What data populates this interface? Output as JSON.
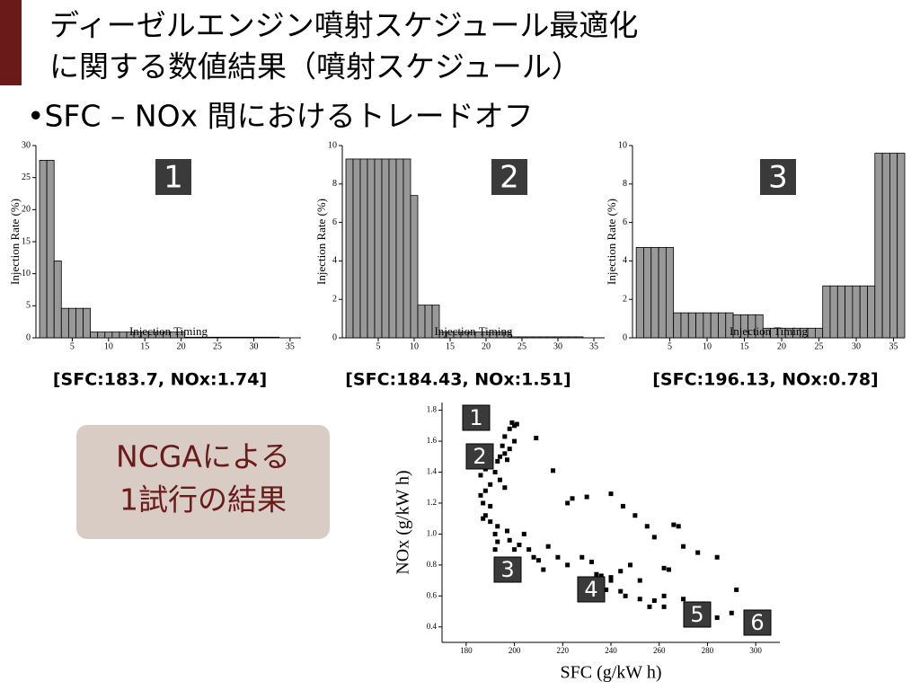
{
  "slide": {
    "title_lines": [
      "ディーゼルエンジン噴射スケジュール最適化",
      "に関する数値結果（噴射スケジュール）"
    ],
    "bullet": "•SFC – NOx 間におけるトレードオフ",
    "box_lines": [
      "NCGAによる",
      "1試行の結果"
    ]
  },
  "chart_data": [
    {
      "type": "bar",
      "annotation": "1",
      "caption": "[SFC:183.7, NOx:1.74]",
      "xlabel": "Injection Timing",
      "ylabel": "Injection Rate (%)",
      "color": "#999999",
      "x": [
        1,
        2,
        3,
        4,
        5,
        6,
        7,
        8,
        9,
        10,
        11,
        12,
        13,
        14,
        15,
        16,
        17,
        18,
        19,
        20,
        21,
        22,
        23,
        24,
        25,
        26,
        27,
        28,
        29,
        30,
        31,
        32,
        33,
        34,
        35,
        36
      ],
      "values": [
        27.7,
        27.7,
        12,
        4.6,
        4.6,
        4.6,
        4.6,
        0.9,
        0.9,
        0.9,
        0.9,
        0.9,
        0.9,
        0.9,
        0.9,
        0.9,
        0.9,
        0.9,
        0.9,
        0.9,
        0.1,
        0.1,
        0.1,
        0.1,
        0.1,
        0.1,
        0.1,
        0.1,
        0.1,
        0.1,
        0.1,
        0.1,
        0.1,
        0,
        0,
        0
      ],
      "xlim": [
        0,
        36.5
      ],
      "ylim": [
        0,
        30
      ],
      "xticks": [
        5,
        10,
        15,
        20,
        25,
        30,
        35
      ],
      "yticks": [
        0,
        5,
        10,
        15,
        20,
        25,
        30
      ]
    },
    {
      "type": "bar",
      "annotation": "2",
      "caption": "[SFC:184.43, NOx:1.51]",
      "xlabel": "Injection Timing",
      "ylabel": "Injection Rate (%)",
      "color": "#999999",
      "x": [
        1,
        2,
        3,
        4,
        5,
        6,
        7,
        8,
        9,
        10,
        11,
        12,
        13,
        14,
        15,
        16,
        17,
        18,
        19,
        20,
        21,
        22,
        23,
        24,
        25,
        26,
        27,
        28,
        29,
        30,
        31,
        32,
        33,
        34,
        35,
        36
      ],
      "values": [
        9.3,
        9.3,
        9.3,
        9.3,
        9.3,
        9.3,
        9.3,
        9.3,
        9.3,
        7.4,
        1.7,
        1.7,
        1.7,
        0.3,
        0.3,
        0.3,
        0.3,
        0.3,
        0.3,
        0.3,
        0.3,
        0.3,
        0.3,
        0.05,
        0.05,
        0.05,
        0.05,
        0.05,
        0.05,
        0.05,
        0.05,
        0.05,
        0.05,
        0,
        0,
        0
      ],
      "xlim": [
        0,
        36.5
      ],
      "ylim": [
        0,
        10
      ],
      "xticks": [
        5,
        10,
        15,
        20,
        25,
        30,
        35
      ],
      "yticks": [
        0,
        2,
        4,
        6,
        8,
        10
      ]
    },
    {
      "type": "bar",
      "annotation": "3",
      "caption": "[SFC:196.13, NOx:0.78]",
      "xlabel": "Injection Timing",
      "ylabel": "Injection Rate (%)",
      "color": "#999999",
      "x": [
        1,
        2,
        3,
        4,
        5,
        6,
        7,
        8,
        9,
        10,
        11,
        12,
        13,
        14,
        15,
        16,
        17,
        18,
        19,
        20,
        21,
        22,
        23,
        24,
        25,
        26,
        27,
        28,
        29,
        30,
        31,
        32,
        33,
        34,
        35,
        36
      ],
      "values": [
        4.7,
        4.7,
        4.7,
        4.7,
        4.7,
        1.3,
        1.3,
        1.3,
        1.3,
        1.3,
        1.3,
        1.3,
        1.3,
        1.2,
        1.2,
        1.2,
        1.2,
        0.5,
        0.5,
        0.5,
        0.5,
        0.5,
        0.5,
        0.5,
        0.5,
        2.7,
        2.7,
        2.7,
        2.7,
        2.7,
        2.7,
        2.7,
        9.6,
        9.6,
        9.6,
        9.6
      ],
      "xlim": [
        0,
        36.5
      ],
      "ylim": [
        0,
        10
      ],
      "xticks": [
        5,
        10,
        15,
        20,
        25,
        30,
        35
      ],
      "yticks": [
        0,
        2,
        4,
        6,
        8,
        10
      ]
    },
    {
      "type": "scatter",
      "xlabel": "SFC (g/kW h)",
      "ylabel": "NOx (g/kW h)",
      "color": "#000000",
      "annotations": [
        "1",
        "2",
        "3",
        "4",
        "5",
        "6"
      ],
      "x": [
        199,
        200,
        198,
        201,
        196,
        200,
        195,
        198,
        196,
        194,
        197,
        193,
        209,
        216,
        190,
        188,
        192,
        186,
        194,
        190,
        188,
        196,
        186,
        187,
        190,
        188,
        190,
        187,
        193,
        197,
        192,
        204,
        193,
        198,
        202,
        192,
        200,
        206,
        208,
        210,
        214,
        218,
        212,
        222,
        224,
        230,
        228,
        232,
        222,
        240,
        245,
        250,
        255,
        258,
        266,
        268,
        270,
        276,
        284,
        262,
        264,
        248,
        244,
        252,
        236,
        240,
        232,
        238,
        244,
        246,
        252,
        258,
        262,
        256,
        270,
        274,
        278,
        280,
        284,
        292,
        290,
        296,
        298,
        262,
        240,
        234
      ],
      "values": [
        1.72,
        1.7,
        1.68,
        1.71,
        1.63,
        1.6,
        1.57,
        1.55,
        1.52,
        1.5,
        1.48,
        1.47,
        1.62,
        1.41,
        1.45,
        1.42,
        1.4,
        1.38,
        1.35,
        1.32,
        1.28,
        1.3,
        1.25,
        1.2,
        1.18,
        1.12,
        1.08,
        1.1,
        1.05,
        1.02,
        1.0,
        1.0,
        0.95,
        0.96,
        0.93,
        0.9,
        0.9,
        0.9,
        0.85,
        0.83,
        0.92,
        0.85,
        0.77,
        1.2,
        1.23,
        1.24,
        0.85,
        0.82,
        0.8,
        1.26,
        1.18,
        1.12,
        1.05,
        0.98,
        1.06,
        1.05,
        0.92,
        0.88,
        0.85,
        0.78,
        0.77,
        0.8,
        0.76,
        0.7,
        0.73,
        0.7,
        0.68,
        0.64,
        0.63,
        0.6,
        0.58,
        0.57,
        0.53,
        0.53,
        0.58,
        0.55,
        0.55,
        0.48,
        0.46,
        0.64,
        0.49,
        0.46,
        0.44,
        0.6,
        0.72,
        0.74
      ],
      "xlim": [
        170,
        310
      ],
      "ylim": [
        0.3,
        1.85
      ],
      "xticks": [
        180,
        200,
        220,
        240,
        260,
        280,
        300
      ],
      "yticks": [
        0.4,
        0.6,
        0.8,
        {
          "value": 1,
          "label": "1.0"
        },
        1.2,
        1.4,
        1.6,
        1.8
      ]
    }
  ]
}
